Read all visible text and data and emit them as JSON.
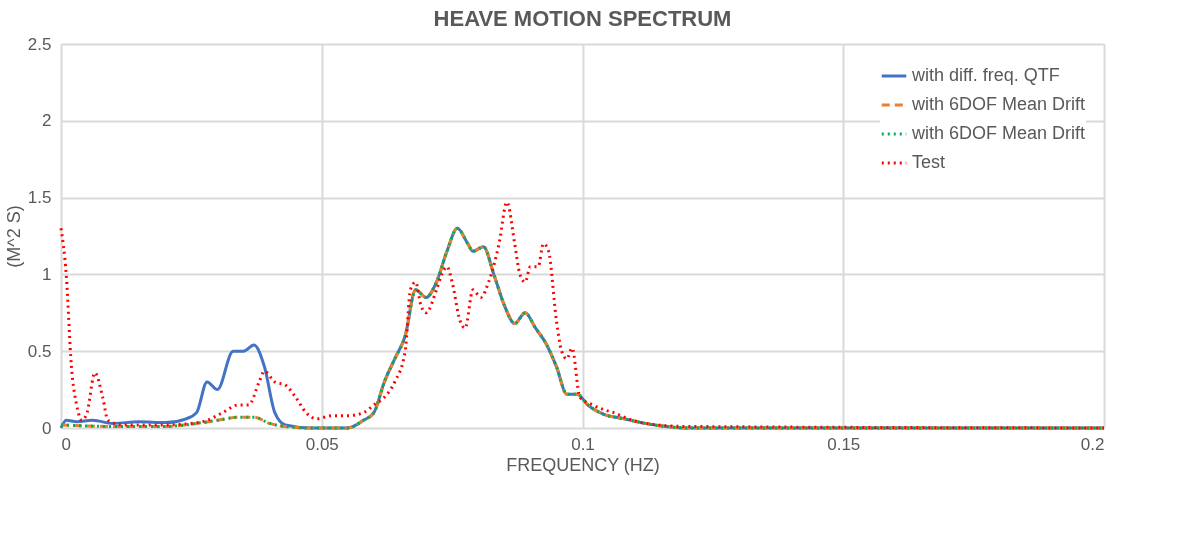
{
  "chart_data": {
    "type": "line",
    "title": "HEAVE MOTION SPECTRUM",
    "xlabel": "FREQUENCY (HZ)",
    "ylabel": "(M^2 S)",
    "xlim": [
      0,
      0.2
    ],
    "xticks": [
      0,
      0.05,
      0.1,
      0.15,
      0.2
    ],
    "ylim": [
      0,
      2.5
    ],
    "yticks": [
      0,
      0.5,
      1,
      1.5,
      2,
      2.5
    ],
    "grid": true,
    "legend": "top right",
    "series": [
      {
        "name": "with diff. freq. QTF",
        "color": "#4472c4",
        "line_style": "solid",
        "x": [
          0,
          0.001,
          0.003,
          0.006,
          0.01,
          0.015,
          0.02,
          0.024,
          0.026,
          0.028,
          0.03,
          0.033,
          0.035,
          0.037,
          0.039,
          0.041,
          0.043,
          0.048,
          0.055,
          0.058,
          0.06,
          0.062,
          0.064,
          0.066,
          0.068,
          0.07,
          0.072,
          0.074,
          0.076,
          0.078,
          0.079,
          0.081,
          0.083,
          0.085,
          0.087,
          0.089,
          0.091,
          0.093,
          0.095,
          0.097,
          0.099,
          0.101,
          0.104,
          0.108,
          0.112,
          0.116,
          0.12,
          0.2
        ],
        "values": [
          0,
          0.05,
          0.04,
          0.05,
          0.03,
          0.04,
          0.035,
          0.06,
          0.1,
          0.3,
          0.25,
          0.5,
          0.5,
          0.54,
          0.4,
          0.1,
          0.02,
          0,
          0,
          0.05,
          0.1,
          0.3,
          0.45,
          0.6,
          0.9,
          0.85,
          0.95,
          1.15,
          1.3,
          1.2,
          1.15,
          1.18,
          1,
          0.8,
          0.68,
          0.75,
          0.65,
          0.55,
          0.4,
          0.22,
          0.22,
          0.15,
          0.09,
          0.06,
          0.03,
          0.01,
          0,
          0
        ]
      },
      {
        "name": "with 6DOF Mean Drift",
        "color": "#ed7d31",
        "line_style": "dashed",
        "x": [
          0,
          0.01,
          0.02,
          0.026,
          0.03,
          0.034,
          0.037,
          0.04,
          0.043,
          0.048,
          0.055,
          0.058,
          0.06,
          0.062,
          0.064,
          0.066,
          0.068,
          0.07,
          0.072,
          0.074,
          0.076,
          0.078,
          0.079,
          0.081,
          0.083,
          0.085,
          0.087,
          0.089,
          0.091,
          0.093,
          0.095,
          0.097,
          0.099,
          0.101,
          0.104,
          0.108,
          0.112,
          0.116,
          0.12,
          0.2
        ],
        "values": [
          0.02,
          0.01,
          0.01,
          0.03,
          0.05,
          0.07,
          0.07,
          0.03,
          0.01,
          0,
          0,
          0.05,
          0.1,
          0.3,
          0.45,
          0.6,
          0.9,
          0.85,
          0.95,
          1.15,
          1.3,
          1.2,
          1.15,
          1.18,
          1,
          0.8,
          0.68,
          0.75,
          0.65,
          0.55,
          0.4,
          0.22,
          0.22,
          0.15,
          0.09,
          0.06,
          0.03,
          0.01,
          0,
          0
        ]
      },
      {
        "name": "with 6DOF Mean Drift",
        "color": "#00b050",
        "line_style": "dotted",
        "x": [
          0,
          0.01,
          0.02,
          0.026,
          0.03,
          0.034,
          0.037,
          0.04,
          0.043,
          0.048,
          0.055,
          0.058,
          0.06,
          0.062,
          0.064,
          0.066,
          0.068,
          0.07,
          0.072,
          0.074,
          0.076,
          0.078,
          0.079,
          0.081,
          0.083,
          0.085,
          0.087,
          0.089,
          0.091,
          0.093,
          0.095,
          0.097,
          0.099,
          0.101,
          0.104,
          0.108,
          0.112,
          0.116,
          0.12,
          0.2
        ],
        "values": [
          0.02,
          0.01,
          0.01,
          0.03,
          0.05,
          0.07,
          0.07,
          0.03,
          0.01,
          0,
          0,
          0.05,
          0.1,
          0.3,
          0.45,
          0.6,
          0.9,
          0.85,
          0.95,
          1.15,
          1.3,
          1.2,
          1.15,
          1.18,
          1,
          0.8,
          0.68,
          0.75,
          0.65,
          0.55,
          0.4,
          0.22,
          0.22,
          0.15,
          0.09,
          0.06,
          0.03,
          0.01,
          0,
          0
        ]
      },
      {
        "name": "Test",
        "color": "#ff0000",
        "line_style": "dotted",
        "x": [
          0,
          0.001,
          0.002,
          0.003,
          0.004,
          0.005,
          0.0065,
          0.008,
          0.009,
          0.012,
          0.02,
          0.025,
          0.028,
          0.031,
          0.034,
          0.036,
          0.038,
          0.039,
          0.041,
          0.043,
          0.045,
          0.047,
          0.049,
          0.052,
          0.055,
          0.058,
          0.06,
          0.062,
          0.064,
          0.066,
          0.067,
          0.068,
          0.069,
          0.07,
          0.072,
          0.073,
          0.074,
          0.075,
          0.0765,
          0.0775,
          0.079,
          0.0805,
          0.082,
          0.084,
          0.0855,
          0.087,
          0.088,
          0.089,
          0.09,
          0.0915,
          0.0925,
          0.0935,
          0.095,
          0.096,
          0.097,
          0.098,
          0.0995,
          0.102,
          0.104,
          0.106,
          0.108,
          0.112,
          0.12,
          0.2
        ],
        "values": [
          1.3,
          1,
          0.4,
          0.15,
          0.05,
          0.1,
          0.36,
          0.2,
          0.05,
          0.02,
          0.02,
          0.03,
          0.05,
          0.1,
          0.15,
          0.15,
          0.3,
          0.37,
          0.3,
          0.28,
          0.2,
          0.1,
          0.06,
          0.08,
          0.08,
          0.1,
          0.15,
          0.2,
          0.3,
          0.5,
          0.9,
          0.95,
          0.8,
          0.75,
          0.9,
          1,
          1.05,
          0.95,
          0.7,
          0.65,
          0.9,
          0.85,
          0.95,
          1.2,
          1.47,
          1.2,
          1,
          0.95,
          1.05,
          1.05,
          1.2,
          1.15,
          0.7,
          0.5,
          0.45,
          0.52,
          0.2,
          0.15,
          0.12,
          0.1,
          0.07,
          0.03,
          0.01,
          0
        ]
      }
    ]
  }
}
